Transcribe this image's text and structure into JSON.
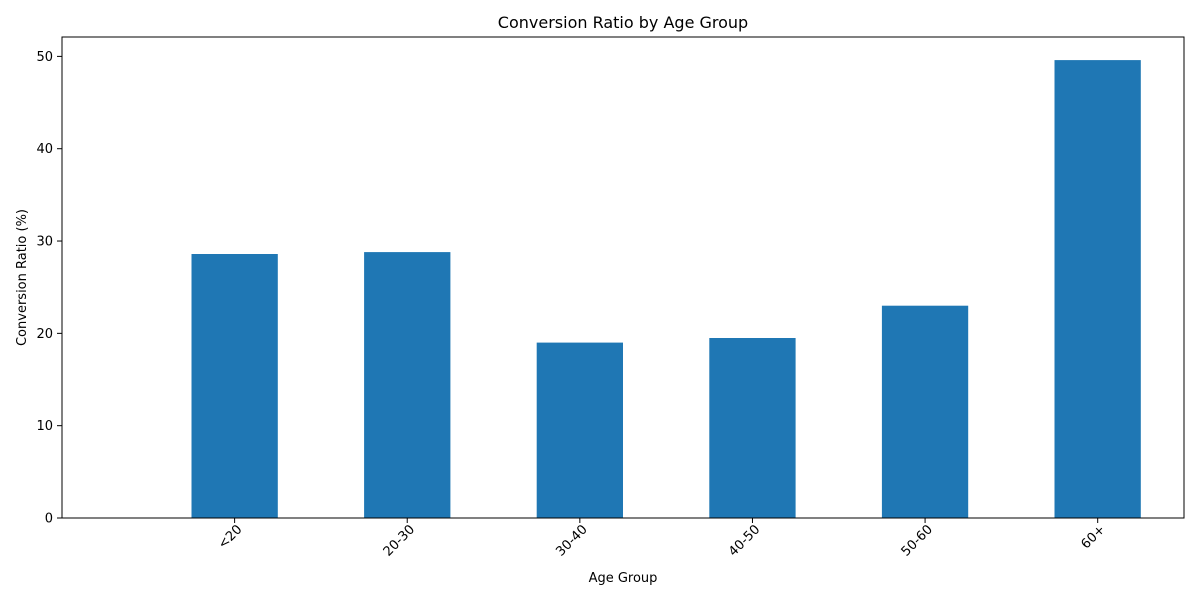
{
  "chart_data": {
    "type": "bar",
    "title": "Conversion Ratio by Age Group",
    "xlabel": "Age Group",
    "ylabel": "Conversion Ratio (%)",
    "categories": [
      "<20",
      "20-30",
      "30-40",
      "40-50",
      "50-60",
      "60+"
    ],
    "values": [
      28.6,
      28.8,
      19.0,
      19.5,
      23.0,
      49.6
    ],
    "ylim": [
      0,
      52.1
    ],
    "yticks": [
      0,
      10,
      20,
      30,
      40,
      50
    ],
    "ytick_labels": [
      "0",
      "10",
      "20",
      "30",
      "40",
      "50"
    ],
    "xtick_rotation": "45 degrees",
    "grid": false,
    "legend": "none",
    "bar_color": "#1f77b4"
  }
}
